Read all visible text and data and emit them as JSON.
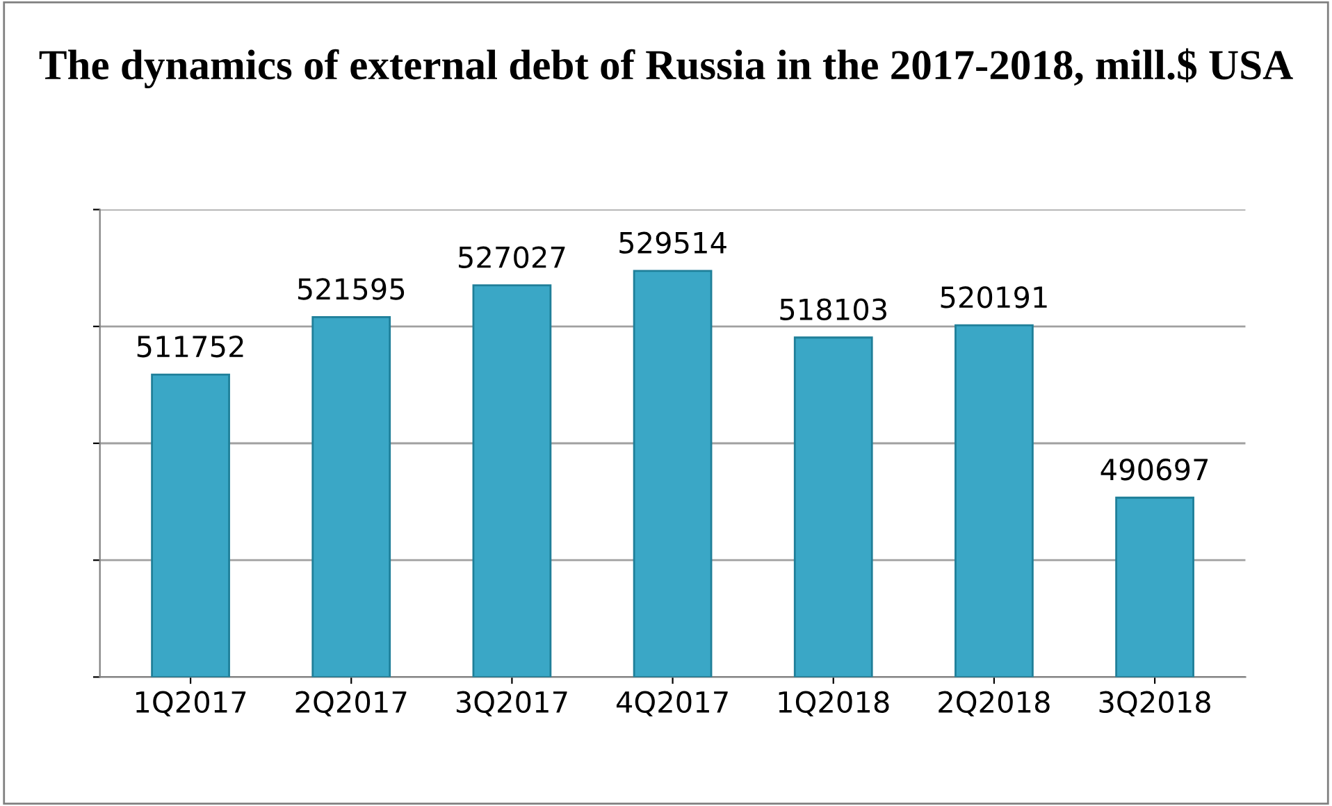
{
  "chart_data": {
    "type": "bar",
    "title": "The dynamics of external debt of Russia in the 2017-2018, mill.$ USA",
    "categories": [
      "1Q2017",
      "2Q2017",
      "3Q2017",
      "4Q2017",
      "1Q2018",
      "2Q2018",
      "3Q2018"
    ],
    "values": [
      511752,
      521595,
      527027,
      529514,
      518103,
      520191,
      490697
    ],
    "color": "#3aa7c6",
    "data_labels": true,
    "ylim": [
      460000,
      540000
    ],
    "yticks": [
      460000,
      480000,
      500000,
      520000,
      540000
    ],
    "tick_labels": "x",
    "grid": "y",
    "legend": false
  }
}
